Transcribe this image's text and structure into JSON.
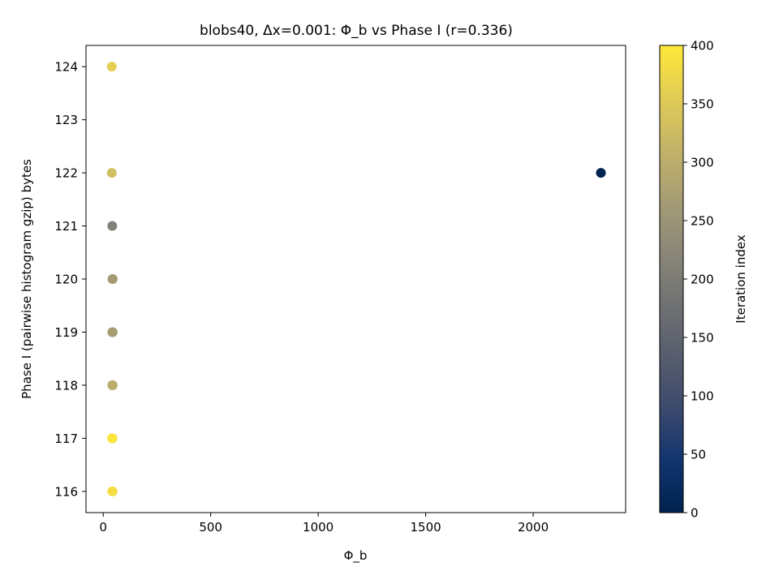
{
  "chart_data": {
    "type": "scatter",
    "title": "blobs40, Δx=0.001: Φ_b vs Phase I (r=0.336)",
    "xlabel": "Φ_b",
    "ylabel": "Phase I (pairwise histogram gzip) bytes",
    "xlim": [
      -80,
      2430
    ],
    "ylim": [
      115.6,
      124.4
    ],
    "xticks": [
      0,
      500,
      1000,
      1500,
      2000
    ],
    "yticks": [
      116,
      117,
      118,
      119,
      120,
      121,
      122,
      123,
      124
    ],
    "grid": false,
    "colorbar": {
      "label": "Iteration index",
      "range": [
        0,
        400
      ],
      "ticks": [
        0,
        50,
        100,
        150,
        200,
        250,
        300,
        350,
        400
      ],
      "colormap": "cividis",
      "colors": [
        "#00224e",
        "#123570",
        "#3b496c",
        "#575d6d",
        "#707173",
        "#8a8678",
        "#a59c74",
        "#c3b369",
        "#e1cc55",
        "#fee838"
      ]
    },
    "points": [
      {
        "x": 2315,
        "y": 122,
        "c": 0
      },
      {
        "x": 42,
        "y": 121,
        "c": 210
      },
      {
        "x": 44,
        "y": 119,
        "c": 240
      },
      {
        "x": 44,
        "y": 120,
        "c": 250
      },
      {
        "x": 43,
        "y": 120,
        "c": 265
      },
      {
        "x": 42,
        "y": 119,
        "c": 270
      },
      {
        "x": 44,
        "y": 118,
        "c": 280
      },
      {
        "x": 42,
        "y": 118,
        "c": 300
      },
      {
        "x": 40,
        "y": 122,
        "c": 330
      },
      {
        "x": 43,
        "y": 117,
        "c": 345
      },
      {
        "x": 40,
        "y": 124,
        "c": 360
      },
      {
        "x": 44,
        "y": 116,
        "c": 375
      },
      {
        "x": 42,
        "y": 116,
        "c": 385
      },
      {
        "x": 41,
        "y": 117,
        "c": 395
      }
    ]
  }
}
